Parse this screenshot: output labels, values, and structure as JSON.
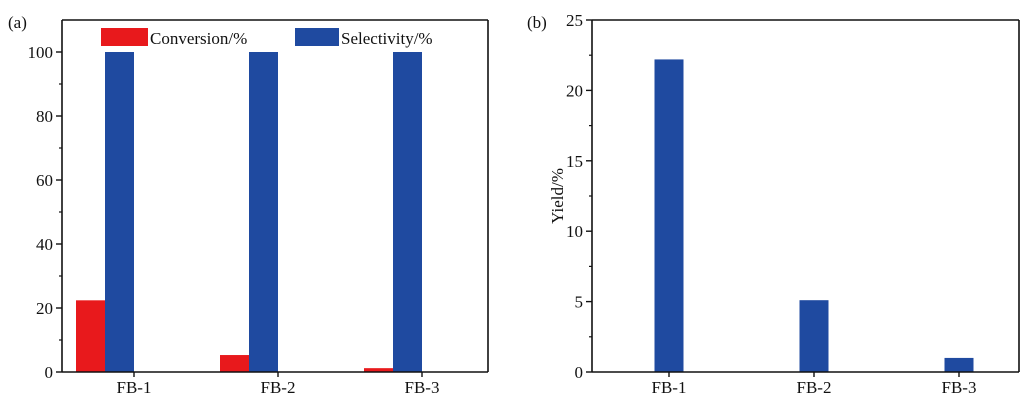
{
  "colors": {
    "conversion": "#e8191c",
    "selectivity": "#1f4aa0",
    "axis": "#111111"
  },
  "chart_data": [
    {
      "panel": "(a)",
      "type": "bar",
      "categories": [
        "FB-1",
        "FB-2",
        "FB-3"
      ],
      "series": [
        {
          "name": "Conversion/%",
          "color": "#e8191c",
          "values": [
            22.4,
            5.3,
            1.2
          ]
        },
        {
          "name": "Selectivity/%",
          "color": "#1f4aa0",
          "values": [
            100,
            100,
            100
          ]
        }
      ],
      "ylim": [
        0,
        110
      ],
      "yticks": [
        0,
        20,
        40,
        60,
        80,
        100
      ],
      "ytick_labels": [
        "0",
        "20",
        "40",
        "60",
        "80",
        "100"
      ],
      "ylabel": "",
      "xlabel": "",
      "legend": "top",
      "grid": false
    },
    {
      "panel": "(b)",
      "type": "bar",
      "categories": [
        "FB-1",
        "FB-2",
        "FB-3"
      ],
      "series": [
        {
          "color": "#1f4aa0",
          "values": [
            22.2,
            5.1,
            1.0
          ]
        }
      ],
      "ylim": [
        0,
        25
      ],
      "yticks": [
        0,
        5,
        10,
        15,
        20,
        25
      ],
      "ytick_labels": [
        "0",
        "5",
        "10",
        "15",
        "20",
        "25"
      ],
      "ylabel": "Yield/%",
      "xlabel": "",
      "grid": false
    }
  ]
}
